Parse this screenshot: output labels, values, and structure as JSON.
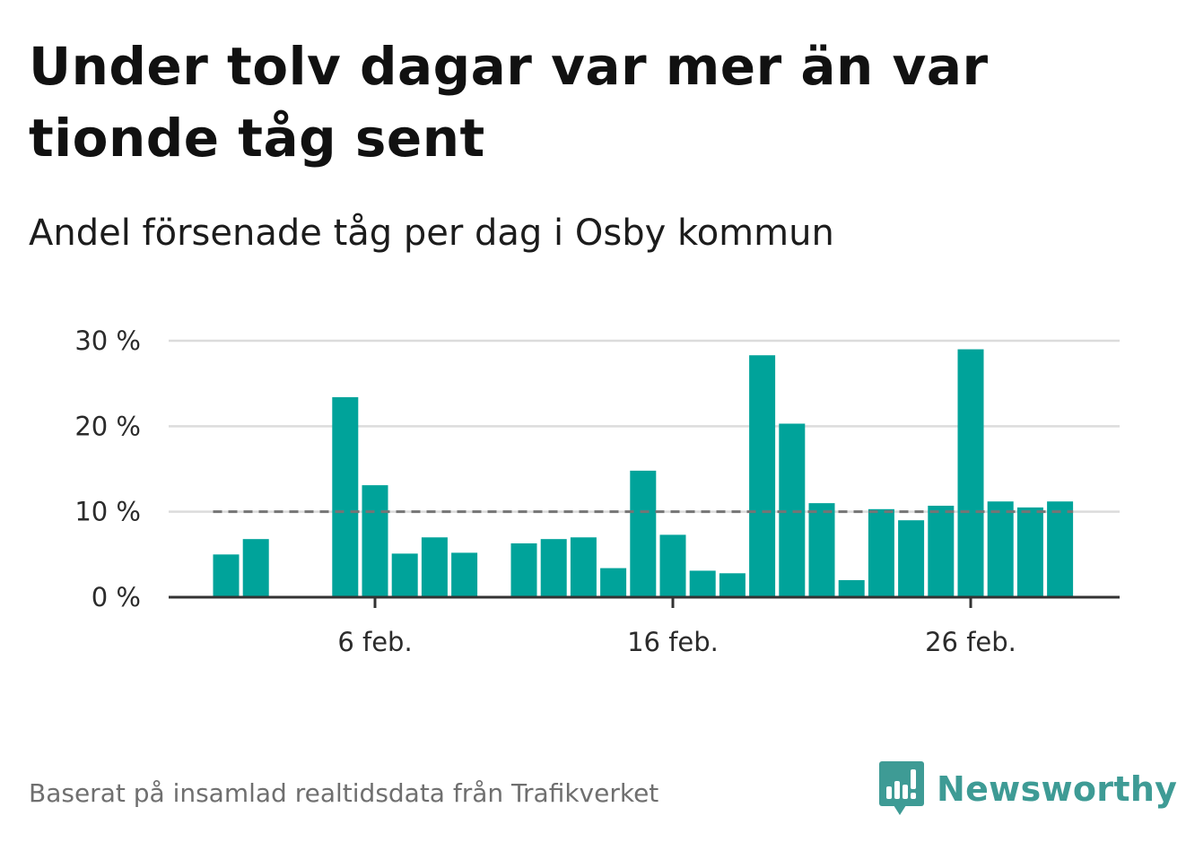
{
  "title": "Under tolv dagar var mer än var tionde tåg sent",
  "subtitle": "Andel försenade tåg per dag i Osby kommun",
  "source": "Baserat på insamlad realtidsdata från Trafikverket",
  "brand": {
    "name": "Newsworthy",
    "icon": "newsworthy-logo-icon",
    "color": "#3e9b95"
  },
  "colors": {
    "bar": "#00a39a",
    "reference_line": "#757575",
    "grid": "#dcdcdc",
    "axis": "#333333"
  },
  "chart_data": {
    "type": "bar",
    "x": [
      1,
      2,
      3,
      4,
      5,
      6,
      7,
      8,
      9,
      10,
      11,
      12,
      13,
      14,
      15,
      16,
      17,
      18,
      19,
      20,
      21,
      22,
      23,
      24,
      25,
      26,
      27,
      28,
      29
    ],
    "values": [
      5.0,
      6.8,
      null,
      null,
      23.4,
      13.1,
      5.1,
      7.0,
      5.2,
      null,
      6.3,
      6.8,
      7.0,
      3.4,
      14.8,
      7.3,
      3.1,
      2.8,
      28.3,
      20.3,
      11.0,
      2.0,
      10.3,
      9.0,
      10.7,
      29.0,
      11.2,
      10.5,
      11.2
    ],
    "reference_line": 10,
    "ylim": [
      0,
      30
    ],
    "yticks": [
      0,
      10,
      20,
      30
    ],
    "ytick_labels": [
      "0 %",
      "10 %",
      "20 %",
      "30 %"
    ],
    "xticks": [
      6,
      16,
      26
    ],
    "xtick_labels": [
      "6 feb.",
      "16 feb.",
      "26 feb."
    ],
    "grid": true
  }
}
